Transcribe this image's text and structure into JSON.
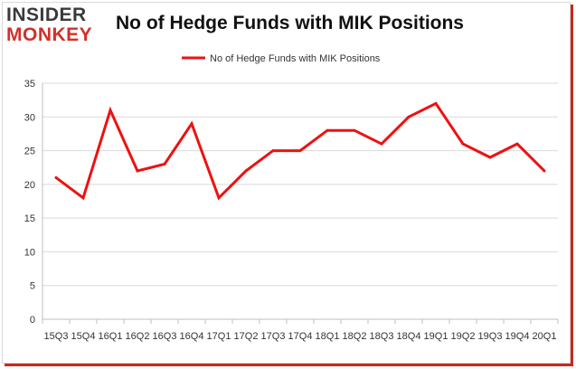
{
  "header": {
    "logo_top": "INSIDER",
    "logo_bottom": "MONKEY",
    "title": "No of Hedge Funds with MIK Positions"
  },
  "colors": {
    "line": "#ee1111",
    "brand_red": "#d2302a",
    "grid": "#d9d9d9"
  },
  "chart_data": {
    "type": "line",
    "title": "No of Hedge Funds with MIK Positions",
    "xlabel": "",
    "ylabel": "",
    "ylim": [
      0,
      35
    ],
    "yticks": [
      0,
      5,
      10,
      15,
      20,
      25,
      30,
      35
    ],
    "grid": true,
    "legend_placement": "top-center",
    "categories": [
      "15Q3",
      "15Q4",
      "16Q1",
      "16Q2",
      "16Q3",
      "16Q4",
      "17Q1",
      "17Q2",
      "17Q3",
      "17Q4",
      "18Q1",
      "18Q2",
      "18Q3",
      "18Q4",
      "19Q1",
      "19Q2",
      "19Q3",
      "19Q4",
      "20Q1"
    ],
    "series": [
      {
        "name": "No of Hedge Funds with MIK Positions",
        "values": [
          21,
          18,
          31,
          22,
          23,
          29,
          18,
          22,
          25,
          25,
          28,
          28,
          26,
          30,
          32,
          26,
          24,
          26,
          22
        ]
      }
    ]
  }
}
